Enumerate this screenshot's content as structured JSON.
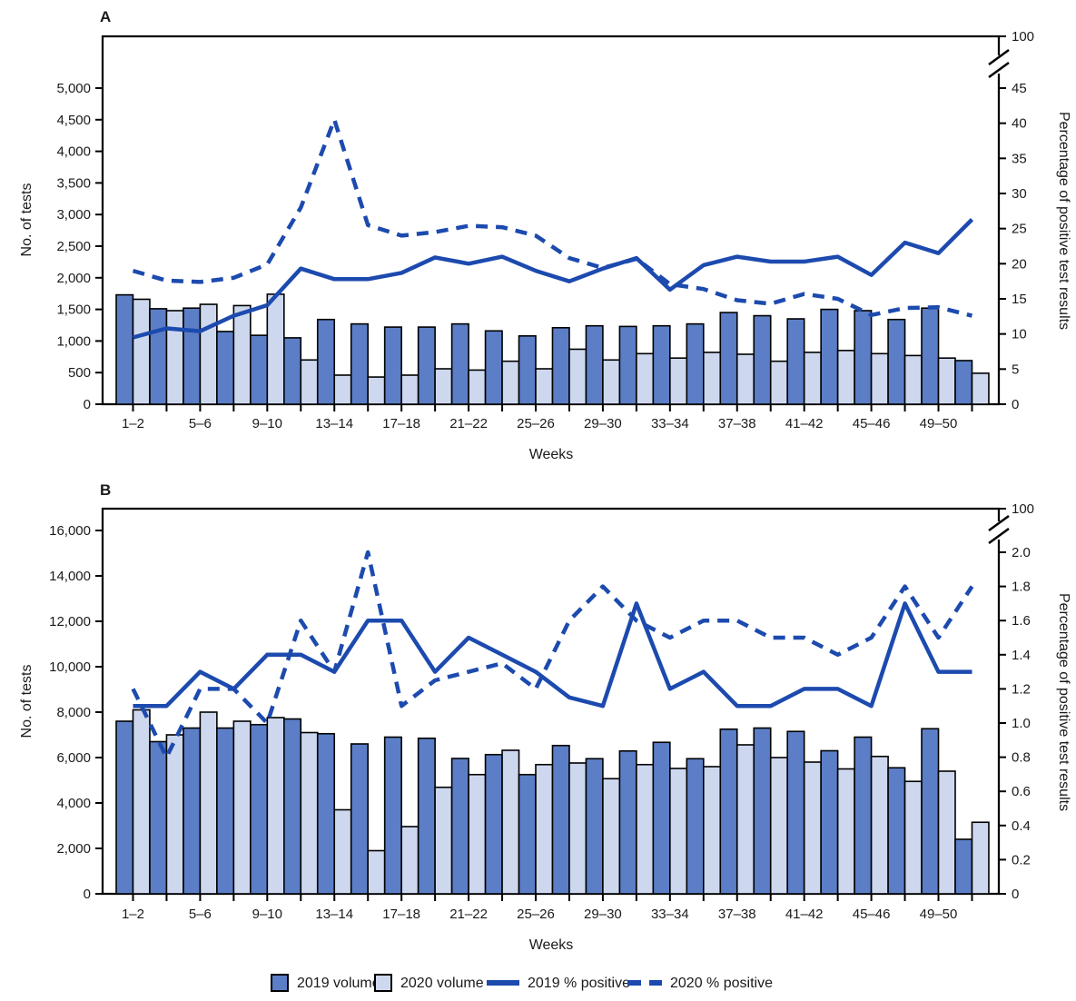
{
  "figure": {
    "panel_a_label": "A",
    "panel_b_label": "B",
    "x_axis_title": "Weeks",
    "left_axis_title": "No. of tests",
    "right_axis_title": "Percentage of positive test results"
  },
  "colors": {
    "bar_2019": "#5b7ec6",
    "bar_2020": "#cdd8ef",
    "line_blue": "#1c4aae",
    "bar_border": "#000000",
    "axis": "#000000",
    "text": "#1a1a1a",
    "background": "#ffffff"
  },
  "legend": {
    "items": [
      {
        "label": "2019 volume",
        "marker": "swatch-dark"
      },
      {
        "label": "2020 volume",
        "marker": "swatch-light"
      },
      {
        "label": "2019 % positive",
        "marker": "line-solid"
      },
      {
        "label": "2020 % positive",
        "marker": "line-dashed"
      }
    ]
  },
  "chart_data": [
    {
      "type": "bar",
      "panel_label": "A",
      "title": "",
      "xlabel": "Weeks",
      "ylabel_left": "No. of tests",
      "ylabel_right": "Percentage of positive test results",
      "grid": false,
      "categories": [
        "1–2",
        "3–4",
        "5–6",
        "7–8",
        "9–10",
        "11–12",
        "13–14",
        "15–16",
        "17–18",
        "19–20",
        "21–22",
        "23–24",
        "25–26",
        "27–28",
        "29–30",
        "31–32",
        "33–34",
        "35–36",
        "37–38",
        "39–40",
        "41–42",
        "43–44",
        "45–46",
        "47–48",
        "49–50",
        "51–52"
      ],
      "left_axis": {
        "tick_values": [
          0,
          500,
          1000,
          1500,
          2000,
          2500,
          3000,
          3500,
          4000,
          4500,
          5000
        ],
        "tick_labels": [
          "0",
          "500",
          "1,000",
          "1,500",
          "2,000",
          "2,500",
          "3,000",
          "3,500",
          "4,000",
          "4,500",
          "5,000"
        ],
        "ylim": [
          0,
          5000
        ]
      },
      "right_axis": {
        "break_label": "100",
        "tick_values": [
          0,
          5,
          10,
          15,
          20,
          25,
          30,
          35,
          40,
          45
        ],
        "tick_labels": [
          "0",
          "5",
          "10",
          "15",
          "20",
          "25",
          "30",
          "35",
          "40",
          "45"
        ],
        "ylim": [
          0,
          45
        ],
        "axis_break": true
      },
      "series": [
        {
          "name": "2019 volume",
          "axis": "left",
          "style": "bar-dark",
          "values": [
            1730,
            1510,
            1520,
            1150,
            1090,
            1050,
            1340,
            1270,
            1220,
            1220,
            1270,
            1160,
            1080,
            1210,
            1240,
            1230,
            1240,
            1270,
            1450,
            1400,
            1350,
            1500,
            1480,
            1340,
            1520,
            690
          ]
        },
        {
          "name": "2020 volume",
          "axis": "left",
          "style": "bar-light",
          "values": [
            1660,
            1480,
            1580,
            1560,
            1740,
            700,
            460,
            430,
            460,
            560,
            540,
            680,
            560,
            870,
            700,
            800,
            730,
            820,
            790,
            680,
            820,
            850,
            800,
            770,
            730,
            490
          ]
        },
        {
          "name": "2019 % positive",
          "axis": "right",
          "style": "line-solid",
          "values": [
            9.5,
            10.8,
            10.4,
            12.6,
            14.1,
            19.3,
            17.8,
            17.8,
            18.7,
            20.9,
            20,
            21,
            19,
            17.5,
            19.3,
            20.8,
            16.3,
            19.8,
            21,
            20.3,
            20.3,
            21,
            18.4,
            23,
            21.5,
            26.3
          ]
        },
        {
          "name": "2020 % positive",
          "axis": "right",
          "style": "line-dashed",
          "values": [
            19,
            17.6,
            17.4,
            18,
            19.9,
            28,
            40.5,
            25.5,
            24,
            24.5,
            25.4,
            25.2,
            24,
            20.8,
            19.4,
            20.7,
            17.1,
            16.4,
            14.8,
            14.3,
            15.7,
            15,
            12.7,
            13.7,
            13.8,
            12.6
          ]
        }
      ]
    },
    {
      "type": "bar",
      "panel_label": "B",
      "title": "",
      "xlabel": "Weeks",
      "ylabel_left": "No. of tests",
      "ylabel_right": "Percentage of positive test results",
      "grid": false,
      "categories": [
        "1–2",
        "3–4",
        "5–6",
        "7–8",
        "9–10",
        "11–12",
        "13–14",
        "15–16",
        "17–18",
        "19–20",
        "21–22",
        "23–24",
        "25–26",
        "27–28",
        "29–30",
        "31–32",
        "33–34",
        "35–36",
        "37–38",
        "39–40",
        "41–42",
        "43–44",
        "45–46",
        "47–48",
        "49–50",
        "51–52"
      ],
      "left_axis": {
        "tick_values": [
          0,
          2000,
          4000,
          6000,
          8000,
          10000,
          12000,
          14000,
          16000
        ],
        "tick_labels": [
          "0",
          "2,000",
          "4,000",
          "6,000",
          "8,000",
          "10,000",
          "12,000",
          "14,000",
          "16,000"
        ],
        "ylim": [
          0,
          16000
        ]
      },
      "right_axis": {
        "break_label": "100",
        "tick_values": [
          0,
          0.2,
          0.4,
          0.6,
          0.8,
          1.0,
          1.2,
          1.4,
          1.6,
          1.8,
          2.0
        ],
        "tick_labels": [
          "0",
          "0.2",
          "0.4",
          "0.6",
          "0.8",
          "1.0",
          "1.2",
          "1.4",
          "1.6",
          "1.8",
          "2.0"
        ],
        "ylim": [
          0,
          2.0
        ],
        "axis_break": true
      },
      "series": [
        {
          "name": "2019 volume",
          "axis": "left",
          "style": "bar-dark",
          "values": [
            7600,
            6700,
            7300,
            7300,
            7450,
            7700,
            7050,
            6600,
            6900,
            6850,
            5960,
            6130,
            5250,
            6530,
            5950,
            6290,
            6670,
            5950,
            7250,
            7300,
            7150,
            6300,
            6900,
            5550,
            7270,
            2400
          ]
        },
        {
          "name": "2020 volume",
          "axis": "left",
          "style": "bar-light",
          "values": [
            8100,
            7000,
            8000,
            7600,
            7760,
            7100,
            3700,
            1900,
            2960,
            4690,
            5250,
            6320,
            5690,
            5760,
            5070,
            5690,
            5520,
            5600,
            6560,
            6000,
            5800,
            5500,
            6050,
            4950,
            5400,
            3150
          ]
        },
        {
          "name": "2019 % positive",
          "axis": "right",
          "style": "line-solid",
          "values": [
            1.1,
            1.1,
            1.3,
            1.2,
            1.4,
            1.4,
            1.3,
            1.6,
            1.6,
            1.3,
            1.5,
            1.4,
            1.3,
            1.15,
            1.1,
            1.7,
            1.2,
            1.3,
            1.1,
            1.1,
            1.2,
            1.2,
            1.1,
            1.7,
            1.3,
            1.3
          ]
        },
        {
          "name": "2020 % positive",
          "axis": "right",
          "style": "line-dashed",
          "values": [
            1.2,
            0.8,
            1.2,
            1.2,
            1.0,
            1.6,
            1.3,
            2.0,
            1.1,
            1.25,
            1.3,
            1.35,
            1.2,
            1.6,
            1.8,
            1.6,
            1.5,
            1.6,
            1.6,
            1.5,
            1.5,
            1.4,
            1.5,
            1.8,
            1.5,
            1.8
          ]
        }
      ]
    }
  ]
}
